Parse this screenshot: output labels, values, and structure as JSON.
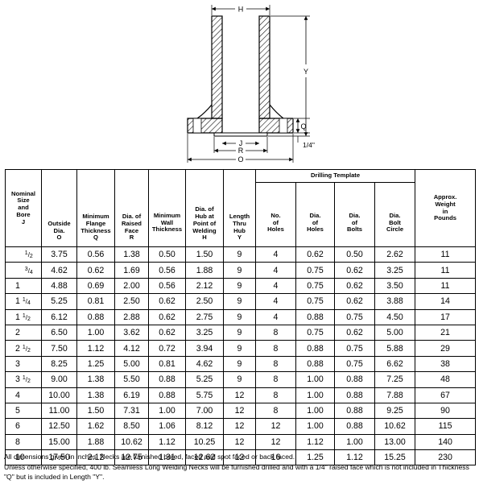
{
  "drawing": {
    "labels": {
      "h": "H",
      "y": "Y",
      "q": "Q",
      "j": "J",
      "r": "R",
      "o": "O",
      "quarter": "1/4\""
    }
  },
  "table": {
    "headers": {
      "nominal": [
        "Nominal",
        "Size",
        "and",
        "Bore",
        "J"
      ],
      "outside": [
        "Outside",
        "Dia.",
        "O"
      ],
      "flange": [
        "Minimum",
        "Flange",
        "Thickness",
        "Q"
      ],
      "raised": [
        "Dia. of",
        "Raised",
        "Face",
        "R"
      ],
      "wall": [
        "Minimum",
        "Wall",
        "Thickness"
      ],
      "hub": [
        "Dia. of",
        "Hub at",
        "Point of",
        "Welding",
        "H"
      ],
      "length": [
        "Length",
        "Thru",
        "Hub",
        "Y"
      ],
      "drilling_template": "Drilling Template",
      "numholes": [
        "No.",
        "of",
        "Holes"
      ],
      "diaholes": [
        "Dia.",
        "of",
        "Holes"
      ],
      "diabolts": [
        "Dia.",
        "of",
        "Bolts"
      ],
      "boltcircle": [
        "Dia.",
        "Bolt",
        "Circle"
      ],
      "weight": [
        "Approx.",
        "Weight",
        "in",
        "Pounds"
      ]
    },
    "rows": [
      {
        "size": {
          "whole": "",
          "num": "1",
          "den": "2"
        },
        "o": "3.75",
        "q": "0.56",
        "r": "1.38",
        "wall": "0.50",
        "h": "1.50",
        "y": "9",
        "n": "4",
        "dh": "0.62",
        "db": "0.50",
        "bc": "2.62",
        "w": "11"
      },
      {
        "size": {
          "whole": "",
          "num": "3",
          "den": "4"
        },
        "o": "4.62",
        "q": "0.62",
        "r": "1.69",
        "wall": "0.56",
        "h": "1.88",
        "y": "9",
        "n": "4",
        "dh": "0.75",
        "db": "0.62",
        "bc": "3.25",
        "w": "11"
      },
      {
        "size": {
          "whole": "1",
          "num": "",
          "den": ""
        },
        "o": "4.88",
        "q": "0.69",
        "r": "2.00",
        "wall": "0.56",
        "h": "2.12",
        "y": "9",
        "n": "4",
        "dh": "0.75",
        "db": "0.62",
        "bc": "3.50",
        "w": "11"
      },
      {
        "size": {
          "whole": "1",
          "num": "1",
          "den": "4"
        },
        "o": "5.25",
        "q": "0.81",
        "r": "2.50",
        "wall": "0.62",
        "h": "2.50",
        "y": "9",
        "n": "4",
        "dh": "0.75",
        "db": "0.62",
        "bc": "3.88",
        "w": "14"
      },
      {
        "size": {
          "whole": "1",
          "num": "1",
          "den": "2"
        },
        "o": "6.12",
        "q": "0.88",
        "r": "2.88",
        "wall": "0.62",
        "h": "2.75",
        "y": "9",
        "n": "4",
        "dh": "0.88",
        "db": "0.75",
        "bc": "4.50",
        "w": "17"
      },
      {
        "size": {
          "whole": "2",
          "num": "",
          "den": ""
        },
        "o": "6.50",
        "q": "1.00",
        "r": "3.62",
        "wall": "0.62",
        "h": "3.25",
        "y": "9",
        "n": "8",
        "dh": "0.75",
        "db": "0.62",
        "bc": "5.00",
        "w": "21"
      },
      {
        "size": {
          "whole": "2",
          "num": "1",
          "den": "2"
        },
        "o": "7.50",
        "q": "1.12",
        "r": "4.12",
        "wall": "0.72",
        "h": "3.94",
        "y": "9",
        "n": "8",
        "dh": "0.88",
        "db": "0.75",
        "bc": "5.88",
        "w": "29"
      },
      {
        "size": {
          "whole": "3",
          "num": "",
          "den": ""
        },
        "o": "8.25",
        "q": "1.25",
        "r": "5.00",
        "wall": "0.81",
        "h": "4.62",
        "y": "9",
        "n": "8",
        "dh": "0.88",
        "db": "0.75",
        "bc": "6.62",
        "w": "38"
      },
      {
        "size": {
          "whole": "3",
          "num": "1",
          "den": "2"
        },
        "o": "9.00",
        "q": "1.38",
        "r": "5.50",
        "wall": "0.88",
        "h": "5.25",
        "y": "9",
        "n": "8",
        "dh": "1.00",
        "db": "0.88",
        "bc": "7.25",
        "w": "48"
      },
      {
        "size": {
          "whole": "4",
          "num": "",
          "den": ""
        },
        "o": "10.00",
        "q": "1.38",
        "r": "6.19",
        "wall": "0.88",
        "h": "5.75",
        "y": "12",
        "n": "8",
        "dh": "1.00",
        "db": "0.88",
        "bc": "7.88",
        "w": "67"
      },
      {
        "size": {
          "whole": "5",
          "num": "",
          "den": ""
        },
        "o": "11.00",
        "q": "1.50",
        "r": "7.31",
        "wall": "1.00",
        "h": "7.00",
        "y": "12",
        "n": "8",
        "dh": "1.00",
        "db": "0.88",
        "bc": "9.25",
        "w": "90"
      },
      {
        "size": {
          "whole": "6",
          "num": "",
          "den": ""
        },
        "o": "12.50",
        "q": "1.62",
        "r": "8.50",
        "wall": "1.06",
        "h": "8.12",
        "y": "12",
        "n": "12",
        "dh": "1.00",
        "db": "0.88",
        "bc": "10.62",
        "w": "115"
      },
      {
        "size": {
          "whole": "8",
          "num": "",
          "den": ""
        },
        "o": "15.00",
        "q": "1.88",
        "r": "10.62",
        "wall": "1.12",
        "h": "10.25",
        "y": "12",
        "n": "12",
        "dh": "1.12",
        "db": "1.00",
        "bc": "13.00",
        "w": "140"
      },
      {
        "size": {
          "whole": "10",
          "num": "",
          "den": ""
        },
        "o": "17.50",
        "q": "2.12",
        "r": "12.75",
        "wall": "1.31",
        "h": "12.62",
        "y": "12",
        "n": "16",
        "dh": "1.25",
        "db": "1.12",
        "bc": "15.25",
        "w": "230"
      }
    ]
  },
  "notes": [
    "All dimensions given in inches. Necks are furnished bored, faced and spot faced or back faced.",
    "Unless otherwise specified, 400 lb. Seamless Long Welding Necks will be furnished drilled and with a 1/4\" raised face which is not included in Thickness \"Q\" but is included in Length \"Y\"."
  ]
}
